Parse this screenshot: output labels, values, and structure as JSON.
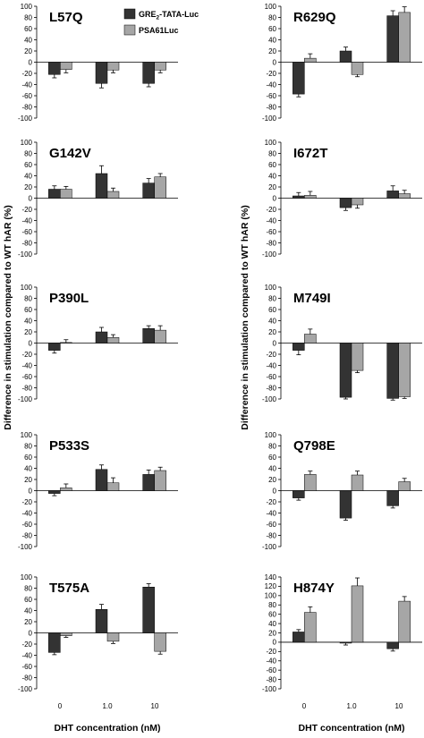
{
  "colors": {
    "dark": "#333333",
    "light": "#a6a6a6",
    "axis": "#000000"
  },
  "legend": [
    {
      "label": "GRE",
      "sub": "2",
      "suffix": "-TATA-Luc"
    },
    {
      "label": "PSA61Luc",
      "sub": "",
      "suffix": ""
    }
  ],
  "ylabel": "Difference in stimulation compared to WT hAR (%)",
  "xlabel": "DHT concentration (nM)",
  "xcategories": [
    "0",
    "1.0",
    "10"
  ],
  "chart_data": [
    {
      "type": "bar",
      "title": "L57Q",
      "column": "left",
      "row": 0,
      "ylim": [
        -100,
        100
      ],
      "yticks": [
        100,
        80,
        60,
        40,
        20,
        0,
        -20,
        -40,
        -60,
        -80,
        -100
      ],
      "categories": [
        "0",
        "1.0",
        "10"
      ],
      "series": [
        {
          "name": "GRE2-TATA-Luc",
          "values": [
            -22,
            -38,
            -38
          ],
          "errors": [
            6,
            8,
            6
          ]
        },
        {
          "name": "PSA61Luc",
          "values": [
            -13,
            -14,
            -14
          ],
          "errors": [
            6,
            5,
            5
          ]
        }
      ]
    },
    {
      "type": "bar",
      "title": "G142V",
      "column": "left",
      "row": 1,
      "ylim": [
        -100,
        100
      ],
      "yticks": [
        100,
        80,
        60,
        40,
        20,
        0,
        -20,
        -40,
        -60,
        -80,
        -100
      ],
      "categories": [
        "0",
        "1.0",
        "10"
      ],
      "series": [
        {
          "name": "GRE2-TATA-Luc",
          "values": [
            16,
            44,
            27
          ],
          "errors": [
            6,
            14,
            8
          ]
        },
        {
          "name": "PSA61Luc",
          "values": [
            16,
            12,
            38
          ],
          "errors": [
            5,
            6,
            6
          ]
        }
      ]
    },
    {
      "type": "bar",
      "title": "P390L",
      "column": "left",
      "row": 2,
      "ylim": [
        -100,
        100
      ],
      "yticks": [
        100,
        80,
        60,
        40,
        20,
        0,
        -20,
        -40,
        -60,
        -80,
        -100
      ],
      "categories": [
        "0",
        "1.0",
        "10"
      ],
      "series": [
        {
          "name": "GRE2-TATA-Luc",
          "values": [
            -13,
            20,
            26
          ],
          "errors": [
            5,
            8,
            5
          ]
        },
        {
          "name": "PSA61Luc",
          "values": [
            1,
            10,
            23
          ],
          "errors": [
            5,
            5,
            8
          ]
        }
      ]
    },
    {
      "type": "bar",
      "title": "P533S",
      "column": "left",
      "row": 3,
      "ylim": [
        -100,
        100
      ],
      "yticks": [
        100,
        80,
        60,
        40,
        20,
        0,
        -20,
        -40,
        -60,
        -80,
        -100
      ],
      "categories": [
        "0",
        "1.0",
        "10"
      ],
      "series": [
        {
          "name": "GRE2-TATA-Luc",
          "values": [
            -5,
            38,
            29
          ],
          "errors": [
            4,
            8,
            8
          ]
        },
        {
          "name": "PSA61Luc",
          "values": [
            5,
            14,
            36
          ],
          "errors": [
            7,
            9,
            6
          ]
        }
      ]
    },
    {
      "type": "bar",
      "title": "T575A",
      "column": "left",
      "row": 4,
      "ylim": [
        -100,
        100
      ],
      "yticks": [
        100,
        80,
        60,
        40,
        20,
        0,
        -20,
        -40,
        -60,
        -80,
        -100
      ],
      "categories": [
        "0",
        "1.0",
        "10"
      ],
      "series": [
        {
          "name": "GRE2-TATA-Luc",
          "values": [
            -35,
            42,
            82
          ],
          "errors": [
            4,
            9,
            6
          ]
        },
        {
          "name": "PSA61Luc",
          "values": [
            -5,
            -15,
            -33
          ],
          "errors": [
            3,
            4,
            5
          ]
        }
      ]
    },
    {
      "type": "bar",
      "title": "R629Q",
      "column": "right",
      "row": 0,
      "ylim": [
        -100,
        100
      ],
      "yticks": [
        100,
        80,
        60,
        40,
        20,
        0,
        -20,
        -40,
        -60,
        -80,
        -100
      ],
      "categories": [
        "0",
        "1.0",
        "10"
      ],
      "series": [
        {
          "name": "GRE2-TATA-Luc",
          "values": [
            -57,
            20,
            83
          ],
          "errors": [
            5,
            7,
            9
          ]
        },
        {
          "name": "PSA61Luc",
          "values": [
            7,
            -22,
            89
          ],
          "errors": [
            8,
            4,
            10
          ]
        }
      ]
    },
    {
      "type": "bar",
      "title": "I672T",
      "column": "right",
      "row": 1,
      "ylim": [
        -100,
        100
      ],
      "yticks": [
        100,
        80,
        60,
        40,
        20,
        0,
        -20,
        -40,
        -60,
        -80,
        -100
      ],
      "categories": [
        "0",
        "1.0",
        "10"
      ],
      "series": [
        {
          "name": "GRE2-TATA-Luc",
          "values": [
            4,
            -17,
            13
          ],
          "errors": [
            6,
            5,
            9
          ]
        },
        {
          "name": "PSA61Luc",
          "values": [
            5,
            -12,
            8
          ],
          "errors": [
            7,
            6,
            6
          ]
        }
      ]
    },
    {
      "type": "bar",
      "title": "M749I",
      "column": "right",
      "row": 2,
      "ylim": [
        -100,
        100
      ],
      "yticks": [
        100,
        80,
        60,
        40,
        20,
        0,
        -20,
        -40,
        -60,
        -80,
        -100
      ],
      "categories": [
        "0",
        "1.0",
        "10"
      ],
      "series": [
        {
          "name": "GRE2-TATA-Luc",
          "values": [
            -13,
            -97,
            -99
          ],
          "errors": [
            8,
            3,
            3
          ]
        },
        {
          "name": "PSA61Luc",
          "values": [
            16,
            -49,
            -96
          ],
          "errors": [
            9,
            4,
            3
          ]
        }
      ]
    },
    {
      "type": "bar",
      "title": "Q798E",
      "column": "right",
      "row": 3,
      "ylim": [
        -100,
        100
      ],
      "yticks": [
        100,
        80,
        60,
        40,
        20,
        0,
        -20,
        -40,
        -60,
        -80,
        -100
      ],
      "categories": [
        "0",
        "1.0",
        "10"
      ],
      "series": [
        {
          "name": "GRE2-TATA-Luc",
          "values": [
            -13,
            -49,
            -27
          ],
          "errors": [
            4,
            4,
            4
          ]
        },
        {
          "name": "PSA61Luc",
          "values": [
            29,
            28,
            16
          ],
          "errors": [
            6,
            7,
            6
          ]
        }
      ]
    },
    {
      "type": "bar",
      "title": "H874Y",
      "column": "right",
      "row": 4,
      "ylim": [
        -100,
        140
      ],
      "yticks": [
        140,
        120,
        100,
        80,
        60,
        40,
        20,
        0,
        -20,
        -40,
        -60,
        -80,
        -100
      ],
      "categories": [
        "0",
        "1.0",
        "10"
      ],
      "series": [
        {
          "name": "GRE2-TATA-Luc",
          "values": [
            22,
            -2,
            -14
          ],
          "errors": [
            5,
            4,
            5
          ]
        },
        {
          "name": "PSA61Luc",
          "values": [
            64,
            121,
            88
          ],
          "errors": [
            12,
            17,
            10
          ]
        }
      ]
    }
  ]
}
